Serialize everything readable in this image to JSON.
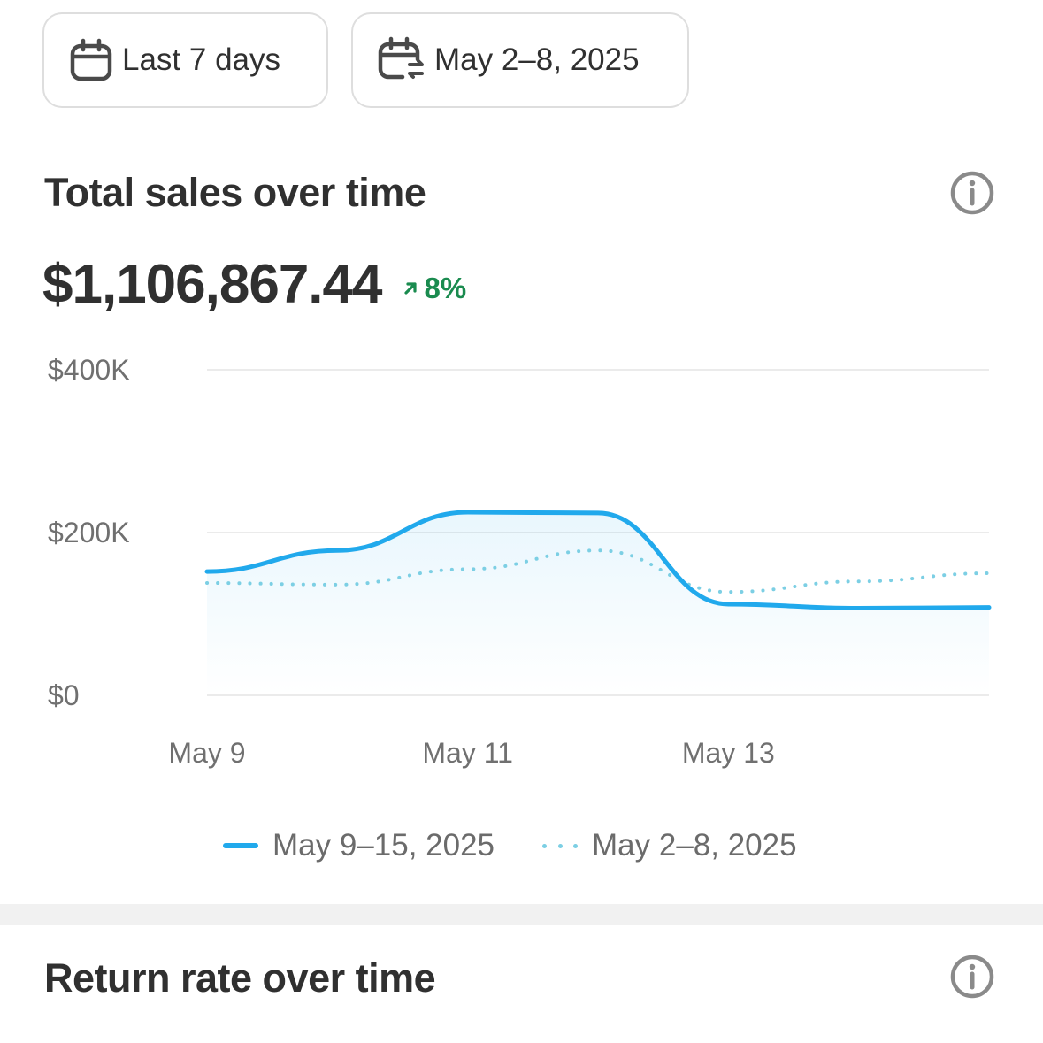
{
  "filters": {
    "range_label": "Last 7 days",
    "compare_label": "May 2–8, 2025"
  },
  "sales_card": {
    "title": "Total sales over time",
    "value": "$1,106,867.44",
    "change": "8%",
    "change_direction": "up",
    "change_color": "#1a8b4f"
  },
  "chart_data": {
    "type": "line",
    "x": [
      "May 9",
      "May 10",
      "May 11",
      "May 12",
      "May 13",
      "May 14",
      "May 15"
    ],
    "x_tick_labels": [
      "May 9",
      "May 11",
      "May 13"
    ],
    "y_tick_labels": [
      "$0",
      "$200K",
      "$400K"
    ],
    "ylim": [
      0,
      400000
    ],
    "grid": true,
    "legend_position": "bottom",
    "series": [
      {
        "name": "May 9–15, 2025",
        "style": "solid",
        "color": "#21a9ec",
        "values": [
          152000,
          178000,
          225000,
          224000,
          112000,
          107000,
          108000
        ]
      },
      {
        "name": "May 2–8, 2025",
        "style": "dotted",
        "color": "#7ccfe4",
        "values": [
          138000,
          136000,
          155000,
          178000,
          127000,
          140000,
          150000
        ]
      }
    ]
  },
  "returns_card": {
    "title": "Return rate over time"
  }
}
